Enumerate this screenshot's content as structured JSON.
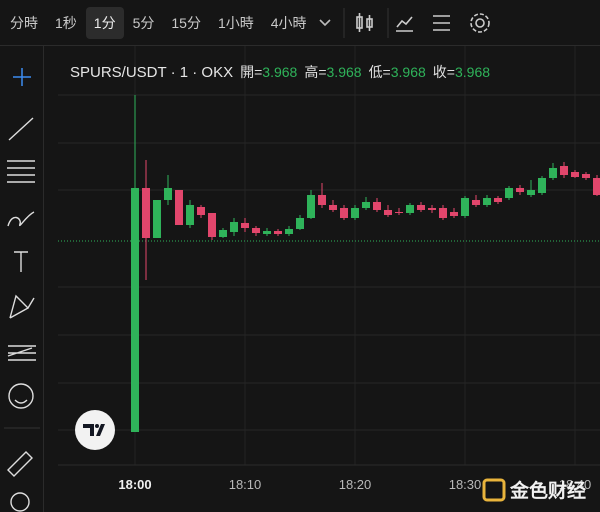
{
  "toolbar": {
    "intervals": [
      "分時",
      "1秒",
      "1分",
      "5分",
      "15分",
      "1小時",
      "4小時"
    ],
    "selected": 2
  },
  "watermark": "金色财经",
  "chart_data": {
    "type": "candlestick",
    "title": "SPURS/USDT · 1 · OKX",
    "legend_labels": [
      "開=",
      "高=",
      "低=",
      "收="
    ],
    "legend_values": [
      3.968,
      3.968,
      3.968,
      3.968
    ],
    "up_color": "#2fb35a",
    "down_color": "#e2466c",
    "price_line": 3.968,
    "ylim": [
      3.856,
      4.061
    ],
    "xticks": [
      {
        "value": 0,
        "label": "18:00"
      },
      {
        "value": 10,
        "label": "18:10"
      },
      {
        "value": 20,
        "label": "18:20"
      },
      {
        "value": 30,
        "label": "18:30"
      },
      {
        "value": 40,
        "label": "18:40"
      }
    ],
    "open": [
      3.8725,
      3.9945,
      3.9695,
      3.9885,
      3.9935,
      3.976,
      3.985,
      3.982,
      3.97,
      3.9725,
      3.977,
      3.9745,
      3.9715,
      3.973,
      3.9715,
      3.974,
      3.9795,
      3.991,
      3.986,
      3.9845,
      3.9795,
      3.9845,
      3.9875,
      3.9835,
      3.9825,
      3.982,
      3.986,
      3.9845,
      3.9845,
      3.9825,
      3.9805,
      3.9885,
      3.986,
      3.9895,
      3.9895,
      3.9945,
      3.991,
      3.992,
      3.9995,
      4.0055,
      4.0025,
      4.0015,
      3.9995
    ],
    "high": [
      4.041,
      4.0085,
      3.9885,
      4.001,
      3.9935,
      3.9885,
      3.986,
      3.982,
      3.9745,
      3.9795,
      3.9795,
      3.9755,
      3.9745,
      3.974,
      3.9755,
      3.981,
      3.9935,
      3.997,
      3.9885,
      3.986,
      3.986,
      3.99,
      3.9895,
      3.986,
      3.9845,
      3.987,
      3.9875,
      3.986,
      3.986,
      3.9845,
      3.9905,
      3.991,
      3.991,
      3.9905,
      3.9955,
      3.996,
      3.9985,
      4.0005,
      4.007,
      4.0075,
      4.0035,
      4.0025,
      4.001
    ],
    "low": [
      3.8725,
      3.9485,
      3.9695,
      3.986,
      3.976,
      3.9745,
      3.9795,
      3.9685,
      3.9695,
      3.9705,
      3.9725,
      3.9705,
      3.9705,
      3.9705,
      3.9705,
      3.9735,
      3.979,
      3.9845,
      3.9825,
      3.9785,
      3.9785,
      3.9835,
      3.9825,
      3.98,
      3.981,
      3.981,
      3.9825,
      3.982,
      3.9785,
      3.9795,
      3.9795,
      3.985,
      3.985,
      3.9865,
      3.9885,
      3.991,
      3.99,
      3.991,
      3.9985,
      3.9995,
      3.9995,
      3.9985,
      3.9905
    ],
    "close": [
      3.9945,
      3.9695,
      3.9885,
      3.9945,
      3.976,
      3.986,
      3.981,
      3.97,
      3.9735,
      3.9775,
      3.9745,
      3.972,
      3.973,
      3.9715,
      3.974,
      3.9795,
      3.991,
      3.986,
      3.9835,
      3.9795,
      3.9845,
      3.9875,
      3.9835,
      3.981,
      3.982,
      3.986,
      3.9835,
      3.9835,
      3.9795,
      3.9805,
      3.9895,
      3.986,
      3.9895,
      3.9875,
      3.9945,
      3.9925,
      3.9935,
      3.9995,
      4.0045,
      4.001,
      4.0,
      3.9995,
      3.991
    ]
  }
}
